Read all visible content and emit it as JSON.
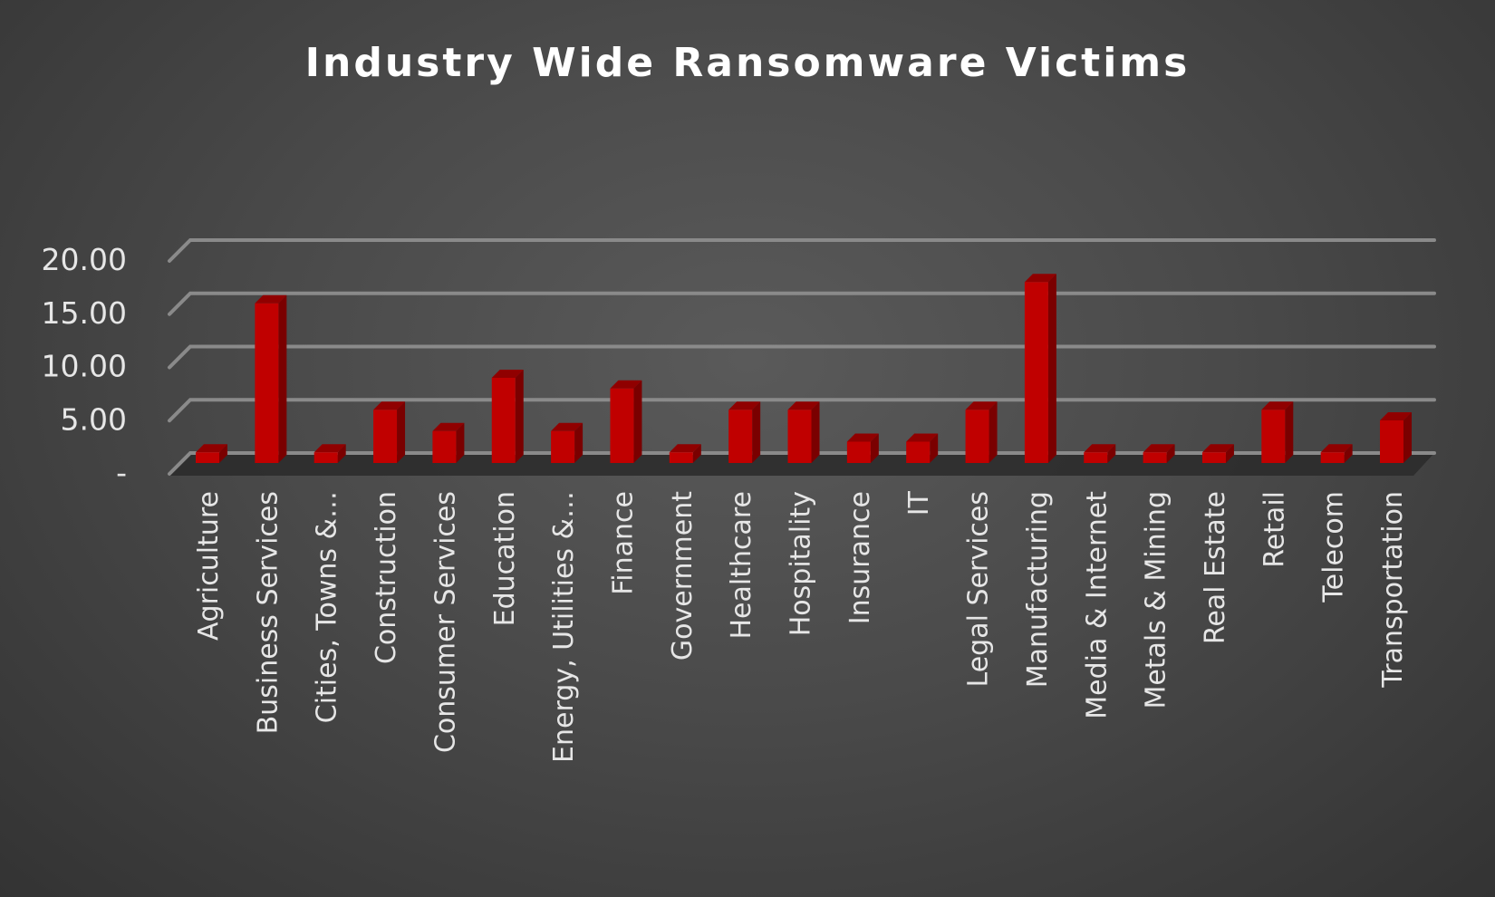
{
  "chart_data": {
    "type": "bar",
    "style": "3d-column",
    "title": "Industry Wide Ransomware Victims",
    "xlabel": "",
    "ylabel": "",
    "ylim": [
      0,
      20
    ],
    "yticks": [
      0,
      5,
      10,
      15,
      20
    ],
    "ytick_labels": [
      "-",
      "5.00",
      "10.00",
      "15.00",
      "20.00"
    ],
    "grid": true,
    "legend": "none",
    "bar_color": "#c00000",
    "categories": [
      "Agriculture",
      "Business Services",
      "Cities, Towns &…",
      "Construction",
      "Consumer Services",
      "Education",
      "Energy, Utilities &…",
      "Finance",
      "Government",
      "Healthcare",
      "Hospitality",
      "Insurance",
      "IT",
      "Legal Services",
      "Manufacturing",
      "Media & Internet",
      "Metals & Mining",
      "Real Estate",
      "Retail",
      "Telecom",
      "Transportation"
    ],
    "values": [
      1,
      15,
      1,
      5,
      3,
      8,
      3,
      7,
      1,
      5,
      5,
      2,
      2,
      5,
      17,
      1,
      1,
      1,
      5,
      1,
      4
    ]
  }
}
